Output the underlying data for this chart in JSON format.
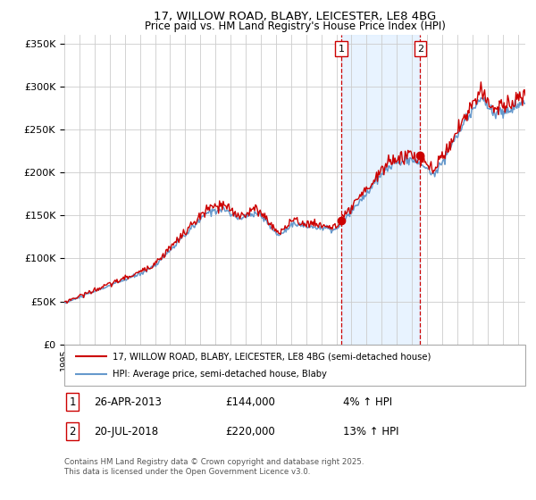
{
  "title": "17, WILLOW ROAD, BLABY, LEICESTER, LE8 4BG",
  "subtitle": "Price paid vs. HM Land Registry's House Price Index (HPI)",
  "legend_line1": "17, WILLOW ROAD, BLABY, LEICESTER, LE8 4BG (semi-detached house)",
  "legend_line2": "HPI: Average price, semi-detached house, Blaby",
  "footer": "Contains HM Land Registry data © Crown copyright and database right 2025.\nThis data is licensed under the Open Government Licence v3.0.",
  "annotation1_label": "1",
  "annotation1_date": "26-APR-2013",
  "annotation1_price": "£144,000",
  "annotation1_hpi": "4% ↑ HPI",
  "annotation2_label": "2",
  "annotation2_date": "20-JUL-2018",
  "annotation2_price": "£220,000",
  "annotation2_hpi": "13% ↑ HPI",
  "red_color": "#cc0000",
  "blue_color": "#6699cc",
  "blue_fill": "#ddeeff",
  "vline_color": "#cc0000",
  "background_color": "#ffffff",
  "grid_color": "#cccccc",
  "ylim": [
    0,
    360000
  ],
  "year_start": 1995,
  "year_end": 2025,
  "sale1_year": 2013.32,
  "sale2_year": 2018.55,
  "sale1_price": 144000,
  "sale2_price": 220000
}
